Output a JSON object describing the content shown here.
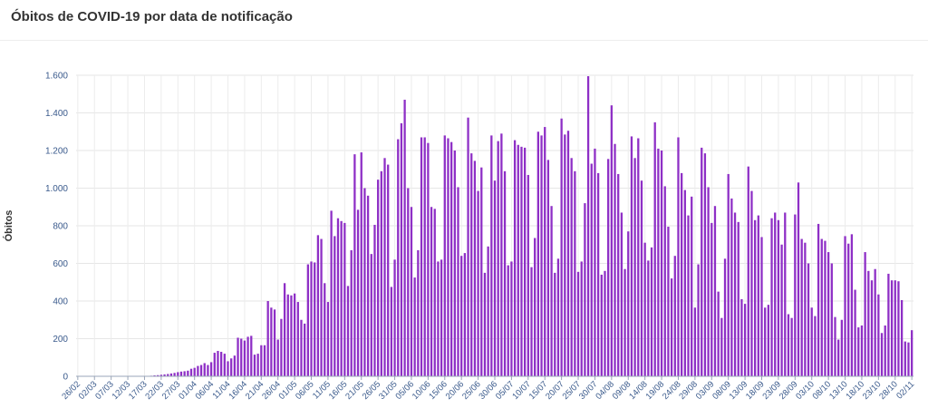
{
  "chart_data": {
    "type": "bar",
    "title": "Óbitos de COVID-19 por data de notificação",
    "xlabel": "",
    "ylabel": "Óbitos",
    "ylim": [
      0,
      1600
    ],
    "yticks": [
      0,
      200,
      400,
      600,
      800,
      1000,
      1200,
      1400,
      1600
    ],
    "ytick_labels": [
      "0",
      "200",
      "400",
      "600",
      "800",
      "1.000",
      "1.200",
      "1.400",
      "1.600"
    ],
    "bar_color": "#8e2fc6",
    "start_date": "26/02",
    "xtick_labels": [
      "26/02",
      "02/03",
      "07/03",
      "12/03",
      "17/03",
      "22/03",
      "27/03",
      "01/04",
      "06/04",
      "11/04",
      "16/04",
      "21/04",
      "26/04",
      "01/05",
      "06/05",
      "11/05",
      "16/05",
      "21/05",
      "26/05",
      "31/05",
      "05/06",
      "10/06",
      "15/06",
      "20/06",
      "25/06",
      "30/06",
      "05/07",
      "10/07",
      "15/07",
      "20/07",
      "25/07",
      "30/07",
      "04/08",
      "09/08",
      "14/08",
      "19/08",
      "24/08",
      "29/08",
      "03/09",
      "08/09",
      "13/09",
      "18/09",
      "23/09",
      "28/09",
      "03/10",
      "08/10",
      "13/10",
      "18/10",
      "23/10",
      "28/10",
      "02/11"
    ],
    "values": [
      0,
      0,
      0,
      0,
      0,
      0,
      0,
      0,
      0,
      0,
      0,
      0,
      0,
      0,
      0,
      0,
      0,
      0,
      0,
      1,
      1,
      2,
      3,
      5,
      6,
      8,
      10,
      12,
      15,
      18,
      22,
      25,
      27,
      30,
      40,
      45,
      55,
      60,
      70,
      60,
      75,
      125,
      135,
      130,
      120,
      80,
      95,
      110,
      205,
      200,
      190,
      210,
      215,
      115,
      120,
      165,
      165,
      400,
      365,
      355,
      195,
      305,
      495,
      435,
      430,
      440,
      395,
      300,
      280,
      595,
      610,
      605,
      750,
      730,
      495,
      395,
      880,
      745,
      840,
      825,
      815,
      480,
      670,
      1180,
      885,
      1190,
      1000,
      960,
      650,
      805,
      1045,
      1090,
      1160,
      1125,
      475,
      620,
      1260,
      1345,
      1470,
      1000,
      900,
      525,
      670,
      1270,
      1270,
      1240,
      900,
      890,
      610,
      620,
      1280,
      1265,
      1245,
      1200,
      1005,
      640,
      655,
      1375,
      1185,
      1145,
      985,
      1110,
      550,
      690,
      1280,
      1040,
      1250,
      1290,
      1090,
      590,
      610,
      1255,
      1230,
      1220,
      1215,
      1070,
      580,
      735,
      1300,
      1280,
      1325,
      1150,
      905,
      550,
      625,
      1370,
      1285,
      1305,
      1160,
      1090,
      555,
      610,
      920,
      1595,
      1130,
      1210,
      1080,
      540,
      560,
      1155,
      1440,
      1235,
      1075,
      870,
      570,
      770,
      1275,
      1160,
      1265,
      1040,
      710,
      615,
      685,
      1350,
      1210,
      1200,
      1010,
      795,
      520,
      640,
      1270,
      1080,
      990,
      855,
      955,
      365,
      595,
      1215,
      1185,
      1005,
      815,
      905,
      450,
      310,
      625,
      1075,
      945,
      870,
      820,
      410,
      385,
      1115,
      985,
      830,
      855,
      740,
      365,
      380,
      840,
      870,
      830,
      700,
      870,
      330,
      310,
      860,
      1030,
      730,
      710,
      600,
      365,
      320,
      810,
      730,
      720,
      660,
      600,
      315,
      195,
      300,
      745,
      705,
      755,
      460,
      260,
      270,
      660,
      560,
      510,
      570,
      435,
      230,
      270,
      545,
      510,
      510,
      505,
      405,
      185,
      180,
      245
    ]
  }
}
